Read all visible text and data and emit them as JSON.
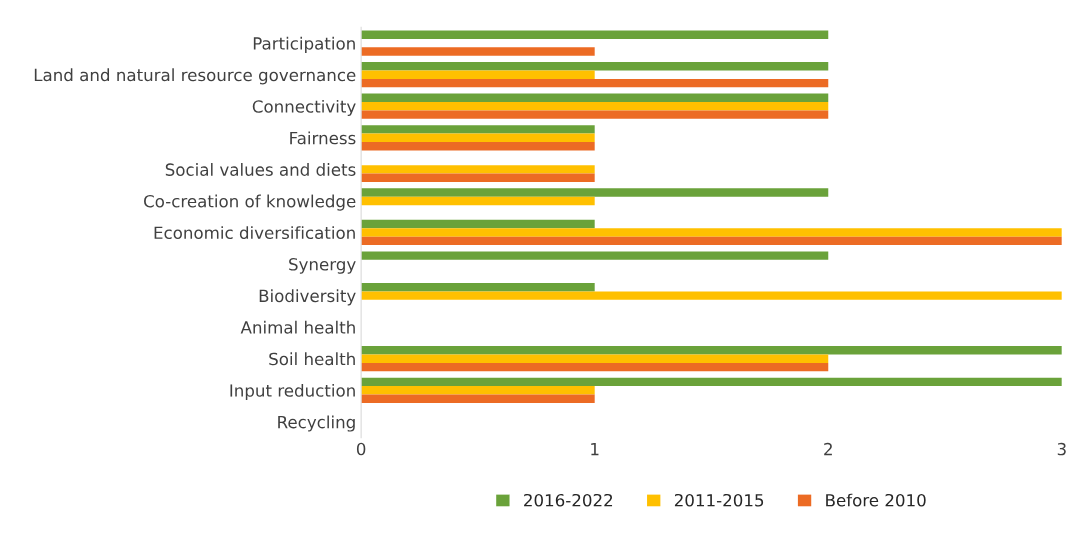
{
  "chart_data": {
    "type": "bar",
    "orientation": "horizontal",
    "categories": [
      "Participation",
      "Land and natural resource governance",
      "Connectivity",
      "Fairness",
      "Social values and diets",
      "Co-creation of knowledge",
      "Economic diversification",
      "Synergy",
      "Biodiversity",
      "Animal health",
      "Soil health",
      "Input reduction",
      "Recycling"
    ],
    "series": [
      {
        "name": "2016-2022",
        "color": "#6aa23a",
        "values": [
          2,
          2,
          2,
          1,
          0,
          2,
          1,
          2,
          1,
          0,
          3,
          3,
          0
        ]
      },
      {
        "name": "2011-2015",
        "color": "#ffc000",
        "values": [
          0,
          1,
          2,
          1,
          1,
          1,
          3,
          0,
          3,
          0,
          2,
          1,
          0
        ]
      },
      {
        "name": "Before 2010",
        "color": "#ec6b24",
        "values": [
          1,
          2,
          2,
          1,
          1,
          0,
          3,
          0,
          0,
          0,
          2,
          1,
          0
        ]
      }
    ],
    "xlim": [
      0,
      3
    ],
    "xticks": [
      0,
      1,
      2,
      3
    ],
    "grid": false,
    "legend": "bottom"
  }
}
